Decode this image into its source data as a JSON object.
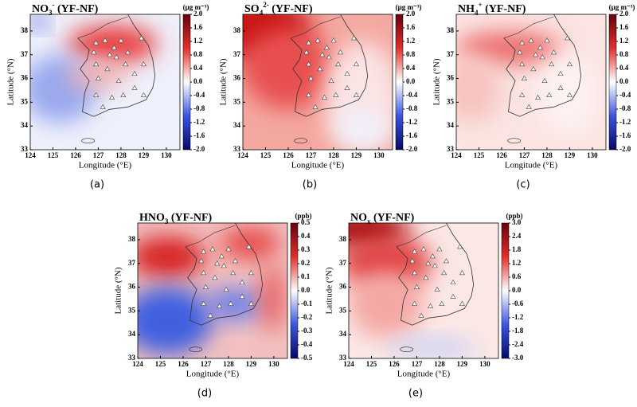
{
  "panels": [
    {
      "label": "(a)",
      "title": [
        {
          "text": "NO"
        },
        {
          "text": "3",
          "script": "sub"
        },
        {
          "text": "-",
          "script": "sup"
        },
        {
          "text": " (YF-NF)"
        }
      ],
      "units": "(μg m⁻³)",
      "clim": [
        -2,
        2
      ],
      "cticks": [
        {
          "value": 2,
          "label": "2.0"
        },
        1.6,
        1.2,
        0.8,
        0.4,
        {
          "value": 0,
          "label": "0.0"
        },
        -0.4,
        -0.8,
        -1.2,
        -1.6,
        {
          "value": -2,
          "label": "-2.0"
        }
      ]
    },
    {
      "label": "(b)",
      "title": [
        {
          "text": "SO"
        },
        {
          "text": "4",
          "script": "sub"
        },
        {
          "text": "2-",
          "script": "sup"
        },
        {
          "text": " (YF-NF)"
        }
      ],
      "units": "(μg m⁻³)",
      "clim": [
        -2,
        2
      ],
      "cticks": [
        {
          "value": 2,
          "label": "2.0"
        },
        1.6,
        1.2,
        0.8,
        0.4,
        {
          "value": 0,
          "label": "0.0"
        },
        -0.4,
        -0.8,
        -1.2,
        -1.6,
        {
          "value": -2,
          "label": "-2.0"
        }
      ]
    },
    {
      "label": "(c)",
      "title": [
        {
          "text": "NH"
        },
        {
          "text": "4",
          "script": "sub"
        },
        {
          "text": "+",
          "script": "sup"
        },
        {
          "text": " (YF-NF)"
        }
      ],
      "units": "(μg m⁻³)",
      "clim": [
        -2,
        2
      ],
      "cticks": [
        {
          "value": 2,
          "label": "2.0"
        },
        1.6,
        1.2,
        0.8,
        0.4,
        {
          "value": 0,
          "label": "0.0"
        },
        -0.4,
        -0.8,
        -1.2,
        -1.6,
        {
          "value": -2,
          "label": "-2.0"
        }
      ]
    },
    {
      "label": "(d)",
      "title": [
        {
          "text": "HNO"
        },
        {
          "text": "3",
          "script": "sub"
        },
        {
          "text": " (YF-NF)"
        }
      ],
      "units": "(ppb)",
      "clim": [
        -0.5,
        0.5
      ],
      "cticks": [
        0.5,
        0.4,
        0.3,
        0.2,
        0.1,
        {
          "value": 0,
          "label": "0.0"
        },
        -0.1,
        -0.2,
        -0.3,
        -0.4,
        -0.5
      ]
    },
    {
      "label": "(e)",
      "title": [
        {
          "text": "NO"
        },
        {
          "text": "x",
          "script": "sub"
        },
        {
          "text": " (YF-NF)"
        }
      ],
      "units": "(ppb)",
      "clim": [
        -3,
        3
      ],
      "cticks": [
        {
          "value": 3,
          "label": "3.0"
        },
        2.4,
        1.8,
        1.2,
        0.6,
        {
          "value": 0,
          "label": "0.0"
        },
        -0.6,
        -1.2,
        -1.8,
        -2.4,
        {
          "value": -3,
          "label": "-3.0"
        }
      ]
    }
  ],
  "xlabel": "Longitude (°E)",
  "ylabel": "Latitude (°N)",
  "xlim": [
    124,
    130.6
  ],
  "xticks": [
    124,
    125,
    126,
    127,
    128,
    129,
    130
  ],
  "ylim": [
    33,
    38.7
  ],
  "yticks": [
    33,
    34,
    35,
    36,
    37,
    38
  ]
}
